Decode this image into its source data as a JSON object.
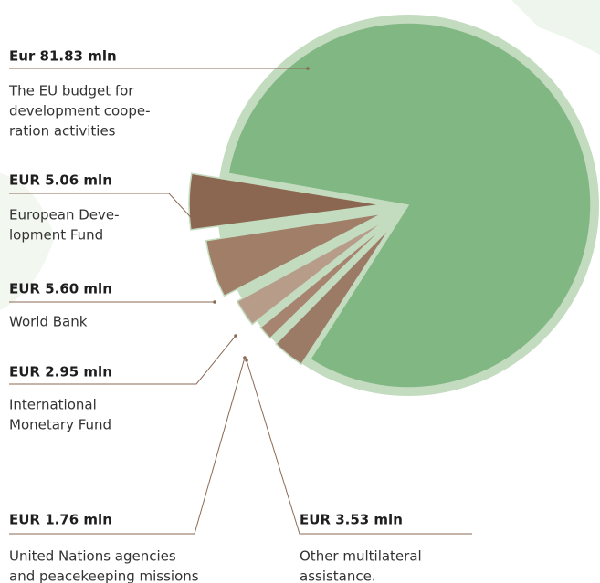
{
  "chart_data": {
    "type": "pie",
    "categories": [
      [
        "The EU budget for",
        "development coope-",
        "ration activities"
      ],
      [
        "European Deve-",
        "lopment Fund"
      ],
      [
        "World Bank"
      ],
      [
        "International",
        "Monetary Fund"
      ],
      [
        "United Nations agencies",
        "and peacekeeping missions"
      ],
      [
        "Other multilateral",
        "assistance."
      ]
    ],
    "values": [
      81.83,
      5.06,
      5.6,
      2.95,
      1.76,
      3.53
    ],
    "value_labels": [
      "Eur 81.83 mln",
      "EUR 5.06 mln",
      "EUR 5.60 mln",
      "EUR 2.95 mln",
      "EUR 1.76 mln",
      "EUR 3.53 mln"
    ],
    "colors": [
      "#80b783",
      "#8b6650",
      "#a07e68",
      "#b89c8a",
      "#a68470",
      "#9b7a66"
    ]
  }
}
